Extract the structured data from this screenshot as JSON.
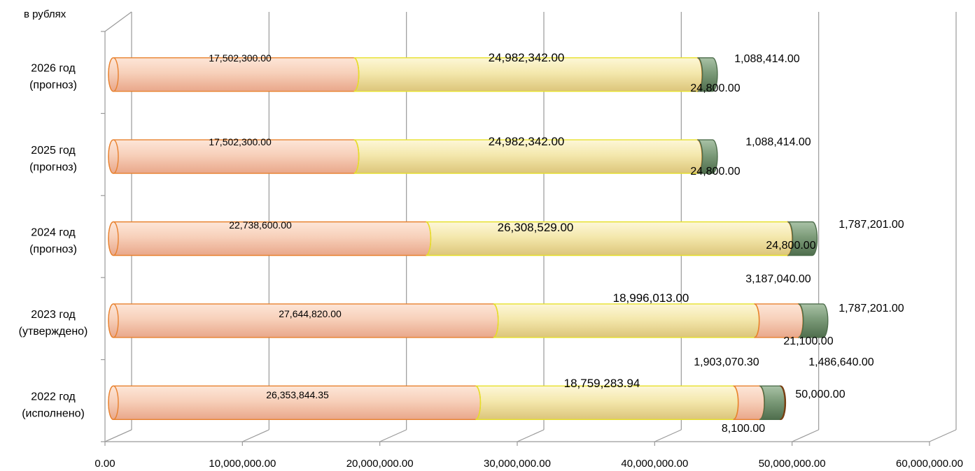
{
  "chart_data": {
    "type": "bar",
    "orientation": "horizontal",
    "stacked": true,
    "style": "3d-cylinder",
    "unit_label": "в рублях",
    "categories": [
      [
        "2022 год",
        "(исполнено)"
      ],
      [
        "2023 год",
        "(утверждено)"
      ],
      [
        "2024 год",
        "(прогноз)"
      ],
      [
        "2025 год",
        "(прогноз)"
      ],
      [
        "2026 год",
        "(прогноз)"
      ]
    ],
    "series": [
      {
        "color": "#f3c3a8",
        "edge": "#e8812e",
        "values": [
          26353844.35,
          27644820.0,
          22738600.0,
          17502300.0,
          17502300.0
        ],
        "labels": [
          "26,353,844.35",
          "27,644,820.00",
          "22,738,600.00",
          "17,502,300.00",
          "17,502,300.00"
        ]
      },
      {
        "color": "#f2e3a0",
        "edge": "#e6e02a",
        "values": [
          18759283.94,
          18996013.0,
          26308529.0,
          24982342.0,
          24982342.0
        ],
        "labels": [
          "18,759,283.94",
          "18,996,013.00",
          "26,308,529.00",
          "24,982,342.00",
          "24,982,342.00"
        ]
      },
      {
        "color": "#f3c3a8",
        "edge": "#e8812e",
        "values": [
          1903070.3,
          3187040.0,
          0,
          0,
          0
        ],
        "labels": [
          "1,903,070.30",
          "3,187,040.00",
          "",
          "",
          ""
        ]
      },
      {
        "color": "#edc6a5",
        "edge": "#e8812e",
        "values": [
          8100.0,
          21100.0,
          24800.0,
          24800.0,
          24800.0
        ],
        "labels": [
          "8,100.00",
          "21,100.00",
          "24,800.00",
          "24,800.00",
          "24,800.00"
        ]
      },
      {
        "color": "#7a9a77",
        "edge": "#4e6e4c",
        "values": [
          1486640.0,
          1787201.0,
          1787201.0,
          1088414.0,
          1088414.0
        ],
        "labels": [
          "1,486,640.00",
          "1,787,201.00",
          "1,787,201.00",
          "1,088,414.00",
          "1,088,414.00"
        ]
      },
      {
        "color": "#a0581e",
        "edge": "#7a3f12",
        "values": [
          50000.0,
          0,
          0,
          0,
          0
        ],
        "labels": [
          "50,000.00",
          "",
          "",
          "",
          ""
        ]
      }
    ],
    "x_ticks": [
      "0.00",
      "10,000,000.00",
      "20,000,000.00",
      "30,000,000.00",
      "40,000,000.00",
      "50,000,000.00",
      "60,000,000.00"
    ],
    "xlim": [
      0,
      60000000
    ],
    "grid": true,
    "legend": "none"
  }
}
